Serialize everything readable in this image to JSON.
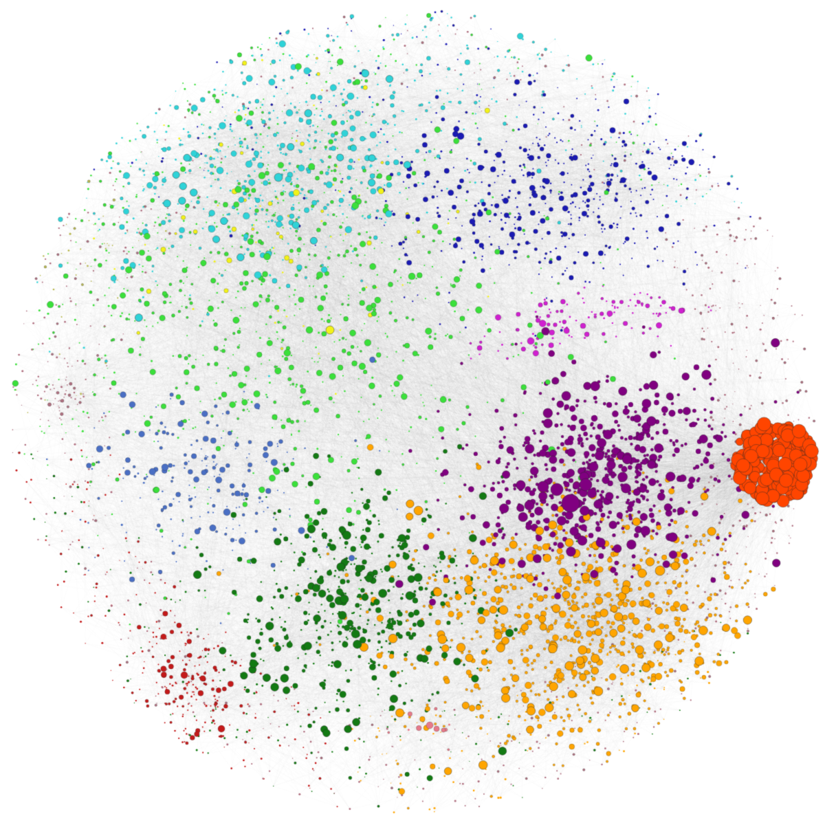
{
  "diagram": {
    "type": "network-graph",
    "background": "#ffffff",
    "edge_color": "#9a9a9a",
    "node_outline": "#444444",
    "communities": [
      {
        "id": "cyan",
        "color": "#2fd3d8"
      },
      {
        "id": "green",
        "color": "#3be03b"
      },
      {
        "id": "yellow",
        "color": "#f2f21a"
      },
      {
        "id": "blue",
        "color": "#1a1ab4"
      },
      {
        "id": "magenta",
        "color": "#d020d0"
      },
      {
        "id": "steel-blue",
        "color": "#4a6fc4"
      },
      {
        "id": "purple",
        "color": "#800080"
      },
      {
        "id": "orange",
        "color": "#ffa500"
      },
      {
        "id": "red-orange",
        "color": "#ff4500"
      },
      {
        "id": "dark-green",
        "color": "#137a13"
      },
      {
        "id": "red",
        "color": "#c41a1a"
      },
      {
        "id": "pink",
        "color": "#e87a8a"
      },
      {
        "id": "mauve",
        "color": "#b07080"
      },
      {
        "id": "olive",
        "color": "#b8b850"
      }
    ]
  }
}
